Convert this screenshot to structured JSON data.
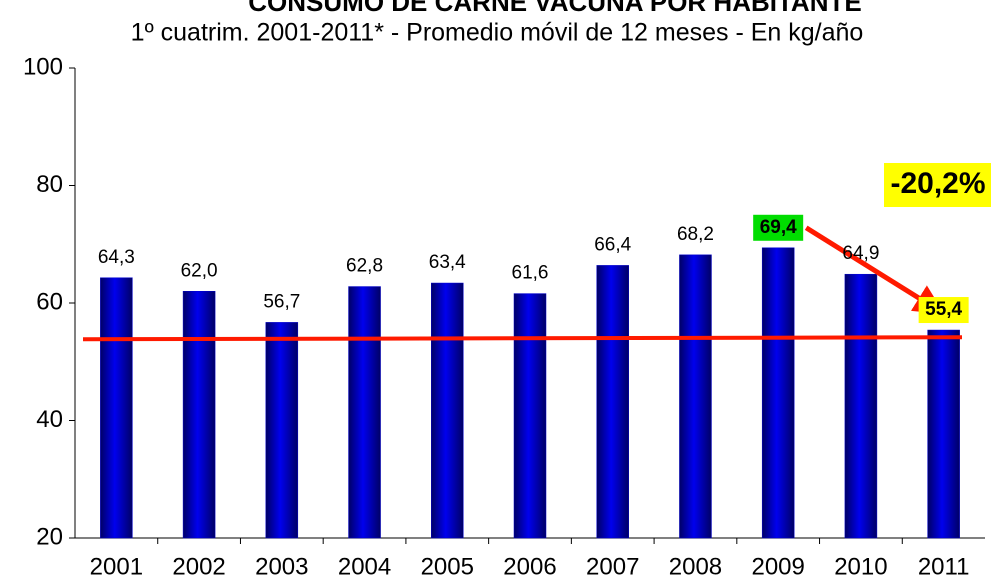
{
  "chart_data": {
    "type": "bar",
    "title": "CONSUMO DE CARNE VACUNA POR HABITANTE",
    "subtitle": "1º cuatrim. 2001-2011* - Promedio móvil de 12 meses -  En kg/año",
    "categories": [
      "2001",
      "2002",
      "2003",
      "2004",
      "2005",
      "2006",
      "2007",
      "2008",
      "2009",
      "2010",
      "2011"
    ],
    "values": [
      64.3,
      62.0,
      56.7,
      62.8,
      63.4,
      61.6,
      66.4,
      68.2,
      69.4,
      64.9,
      55.4
    ],
    "value_labels": [
      "64,3",
      "62,0",
      "56,7",
      "62,8",
      "63,4",
      "61,6",
      "66,4",
      "68,2",
      "69,4",
      "64,9",
      "55,4"
    ],
    "value_label_backgrounds": [
      null,
      null,
      null,
      null,
      null,
      null,
      null,
      null,
      "#00dd00",
      null,
      "#ffff00"
    ],
    "color": "#0000cc",
    "ylim": [
      20,
      100
    ],
    "yticks": [
      20,
      40,
      60,
      80,
      100
    ],
    "reference_line": 54,
    "reference_color": "#ff1a00",
    "annotation": "-20,2%"
  }
}
